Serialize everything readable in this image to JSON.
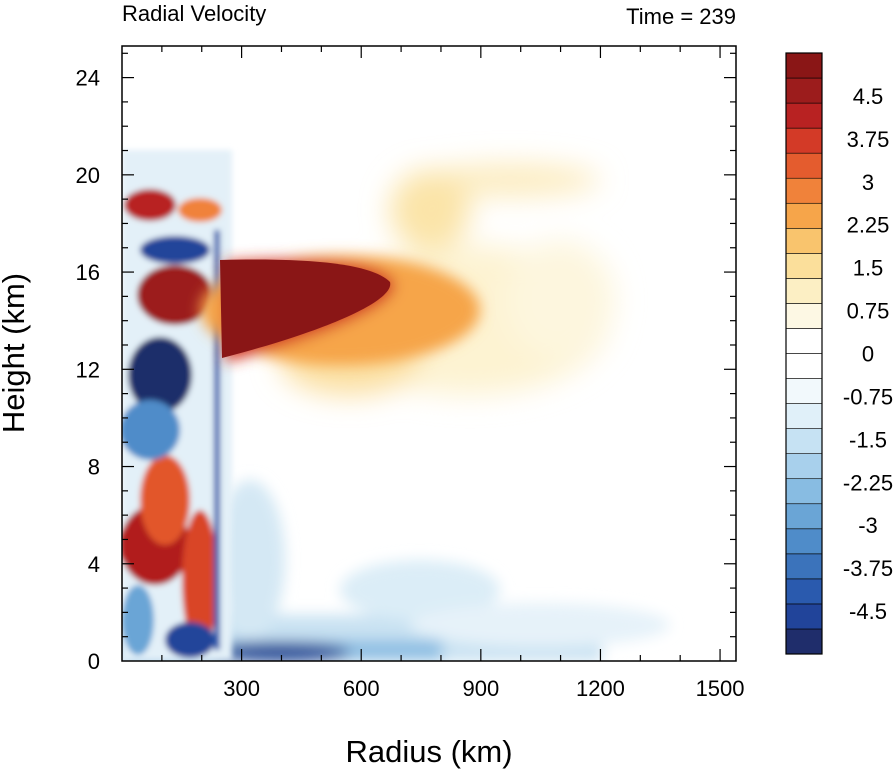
{
  "chart_data": {
    "type": "heatmap",
    "title_left": "Radial Velocity",
    "title_right": "Time = 239",
    "xlabel": "Radius (km)",
    "ylabel": "Height (km)",
    "xlim": [
      0,
      1540
    ],
    "ylim": [
      0,
      25.3
    ],
    "xticks": [
      {
        "value": 300,
        "label": "300"
      },
      {
        "value": 600,
        "label": "600"
      },
      {
        "value": 900,
        "label": "900"
      },
      {
        "value": 1200,
        "label": "1200"
      },
      {
        "value": 1500,
        "label": "1500"
      }
    ],
    "yticks": [
      {
        "value": 0,
        "label": "0"
      },
      {
        "value": 4,
        "label": "4"
      },
      {
        "value": 8,
        "label": "8"
      },
      {
        "value": 12,
        "label": "12"
      },
      {
        "value": 16,
        "label": "16"
      },
      {
        "value": 20,
        "label": "20"
      },
      {
        "value": 24,
        "label": "24"
      }
    ],
    "colorbar": {
      "min": -5.25,
      "max": 5.25,
      "step": 0.25,
      "labels": [
        {
          "value": 4.5,
          "label": "4.5"
        },
        {
          "value": 3.75,
          "label": "3.75"
        },
        {
          "value": 3,
          "label": "3"
        },
        {
          "value": 2.25,
          "label": "2.25"
        },
        {
          "value": 1.5,
          "label": "1.5"
        },
        {
          "value": 0.75,
          "label": "0.75"
        },
        {
          "value": 0,
          "label": "0"
        },
        {
          "value": -0.75,
          "label": "-0.75"
        },
        {
          "value": -1.5,
          "label": "-1.5"
        },
        {
          "value": -2.25,
          "label": "-2.25"
        },
        {
          "value": -3,
          "label": "-3"
        },
        {
          "value": -3.75,
          "label": "-3.75"
        },
        {
          "value": -4.5,
          "label": "-4.5"
        }
      ],
      "colors": [
        "#1f2d6b",
        "#21449a",
        "#2a5aae",
        "#3b73bb",
        "#4f8cc9",
        "#6aa5d6",
        "#88bce2",
        "#a8d0ec",
        "#c6e2f3",
        "#e0f0f9",
        "#f2f9fc",
        "#ffffff",
        "#ffffff",
        "#fdf8e4",
        "#fcefc4",
        "#fbdf9b",
        "#f9c46d",
        "#f6a54a",
        "#f0823a",
        "#e45c2e",
        "#d33a27",
        "#b82222",
        "#9c1c1c",
        "#8a1616"
      ]
    },
    "features": [
      {
        "kind": "outflow-jet",
        "r_range": [
          240,
          700
        ],
        "z_range": [
          12.6,
          16.2
        ],
        "value": 5.0
      },
      {
        "kind": "outflow-tail",
        "r_range": [
          600,
          1200
        ],
        "z_range": [
          9.5,
          20.4
        ],
        "value": 0.8
      },
      {
        "kind": "inflow-band",
        "r_range": [
          0,
          900
        ],
        "z_range": [
          0,
          2.0
        ],
        "value": -2.0
      },
      {
        "kind": "eyewall-interior-lobe",
        "r_center": 110,
        "z_center": 5.4,
        "value": 4.8
      },
      {
        "kind": "eyewall-interior-lobe",
        "r_center": 110,
        "z_center": 11.6,
        "value": -5.0
      },
      {
        "kind": "eyewall-interior-lobe",
        "r_center": 130,
        "z_center": 15.0,
        "value": 5.0
      },
      {
        "kind": "eyewall-interior-lobe",
        "r_center": 130,
        "z_center": 17.0,
        "value": -5.0
      },
      {
        "kind": "eyewall-interior-lobe",
        "r_center": 90,
        "z_center": 18.8,
        "value": 4.5
      }
    ]
  }
}
